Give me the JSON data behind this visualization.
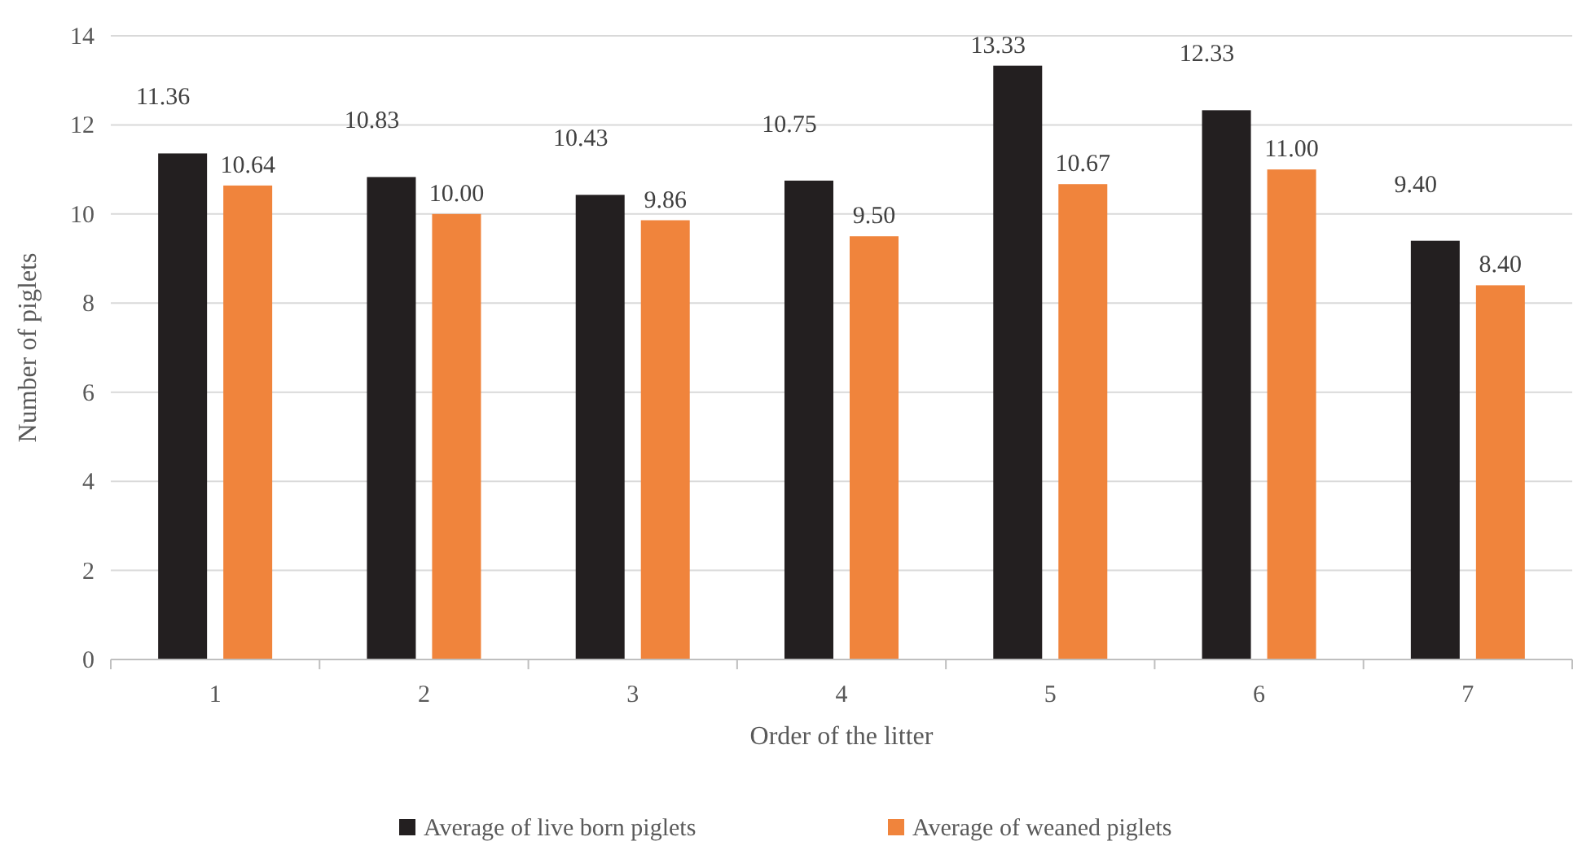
{
  "chart_data": {
    "type": "bar",
    "xlabel": "Order of the litter",
    "ylabel": "Number of  piglets",
    "categories": [
      "1",
      "2",
      "3",
      "4",
      "5",
      "6",
      "7"
    ],
    "series": [
      {
        "name": "Average of live born piglets",
        "color": "#231f20",
        "values": [
          11.36,
          10.83,
          10.43,
          10.75,
          13.33,
          12.33,
          9.4
        ],
        "value_labels": [
          "11.36",
          "10.83",
          "10.43",
          "10.75",
          "13.33",
          "12.33",
          "9.40"
        ]
      },
      {
        "name": "Average of weaned piglets",
        "color": "#f0843c",
        "values": [
          10.64,
          10.0,
          9.86,
          9.5,
          10.67,
          11.0,
          8.4
        ],
        "value_labels": [
          "10.64",
          "10.00",
          "9.86",
          "9.50",
          "10.67",
          "11.00",
          "8.40"
        ]
      }
    ],
    "ylim": [
      0,
      14
    ],
    "yticks": [
      0,
      2,
      4,
      6,
      8,
      10,
      12,
      14
    ],
    "grid": "y",
    "legend": "bottom"
  }
}
